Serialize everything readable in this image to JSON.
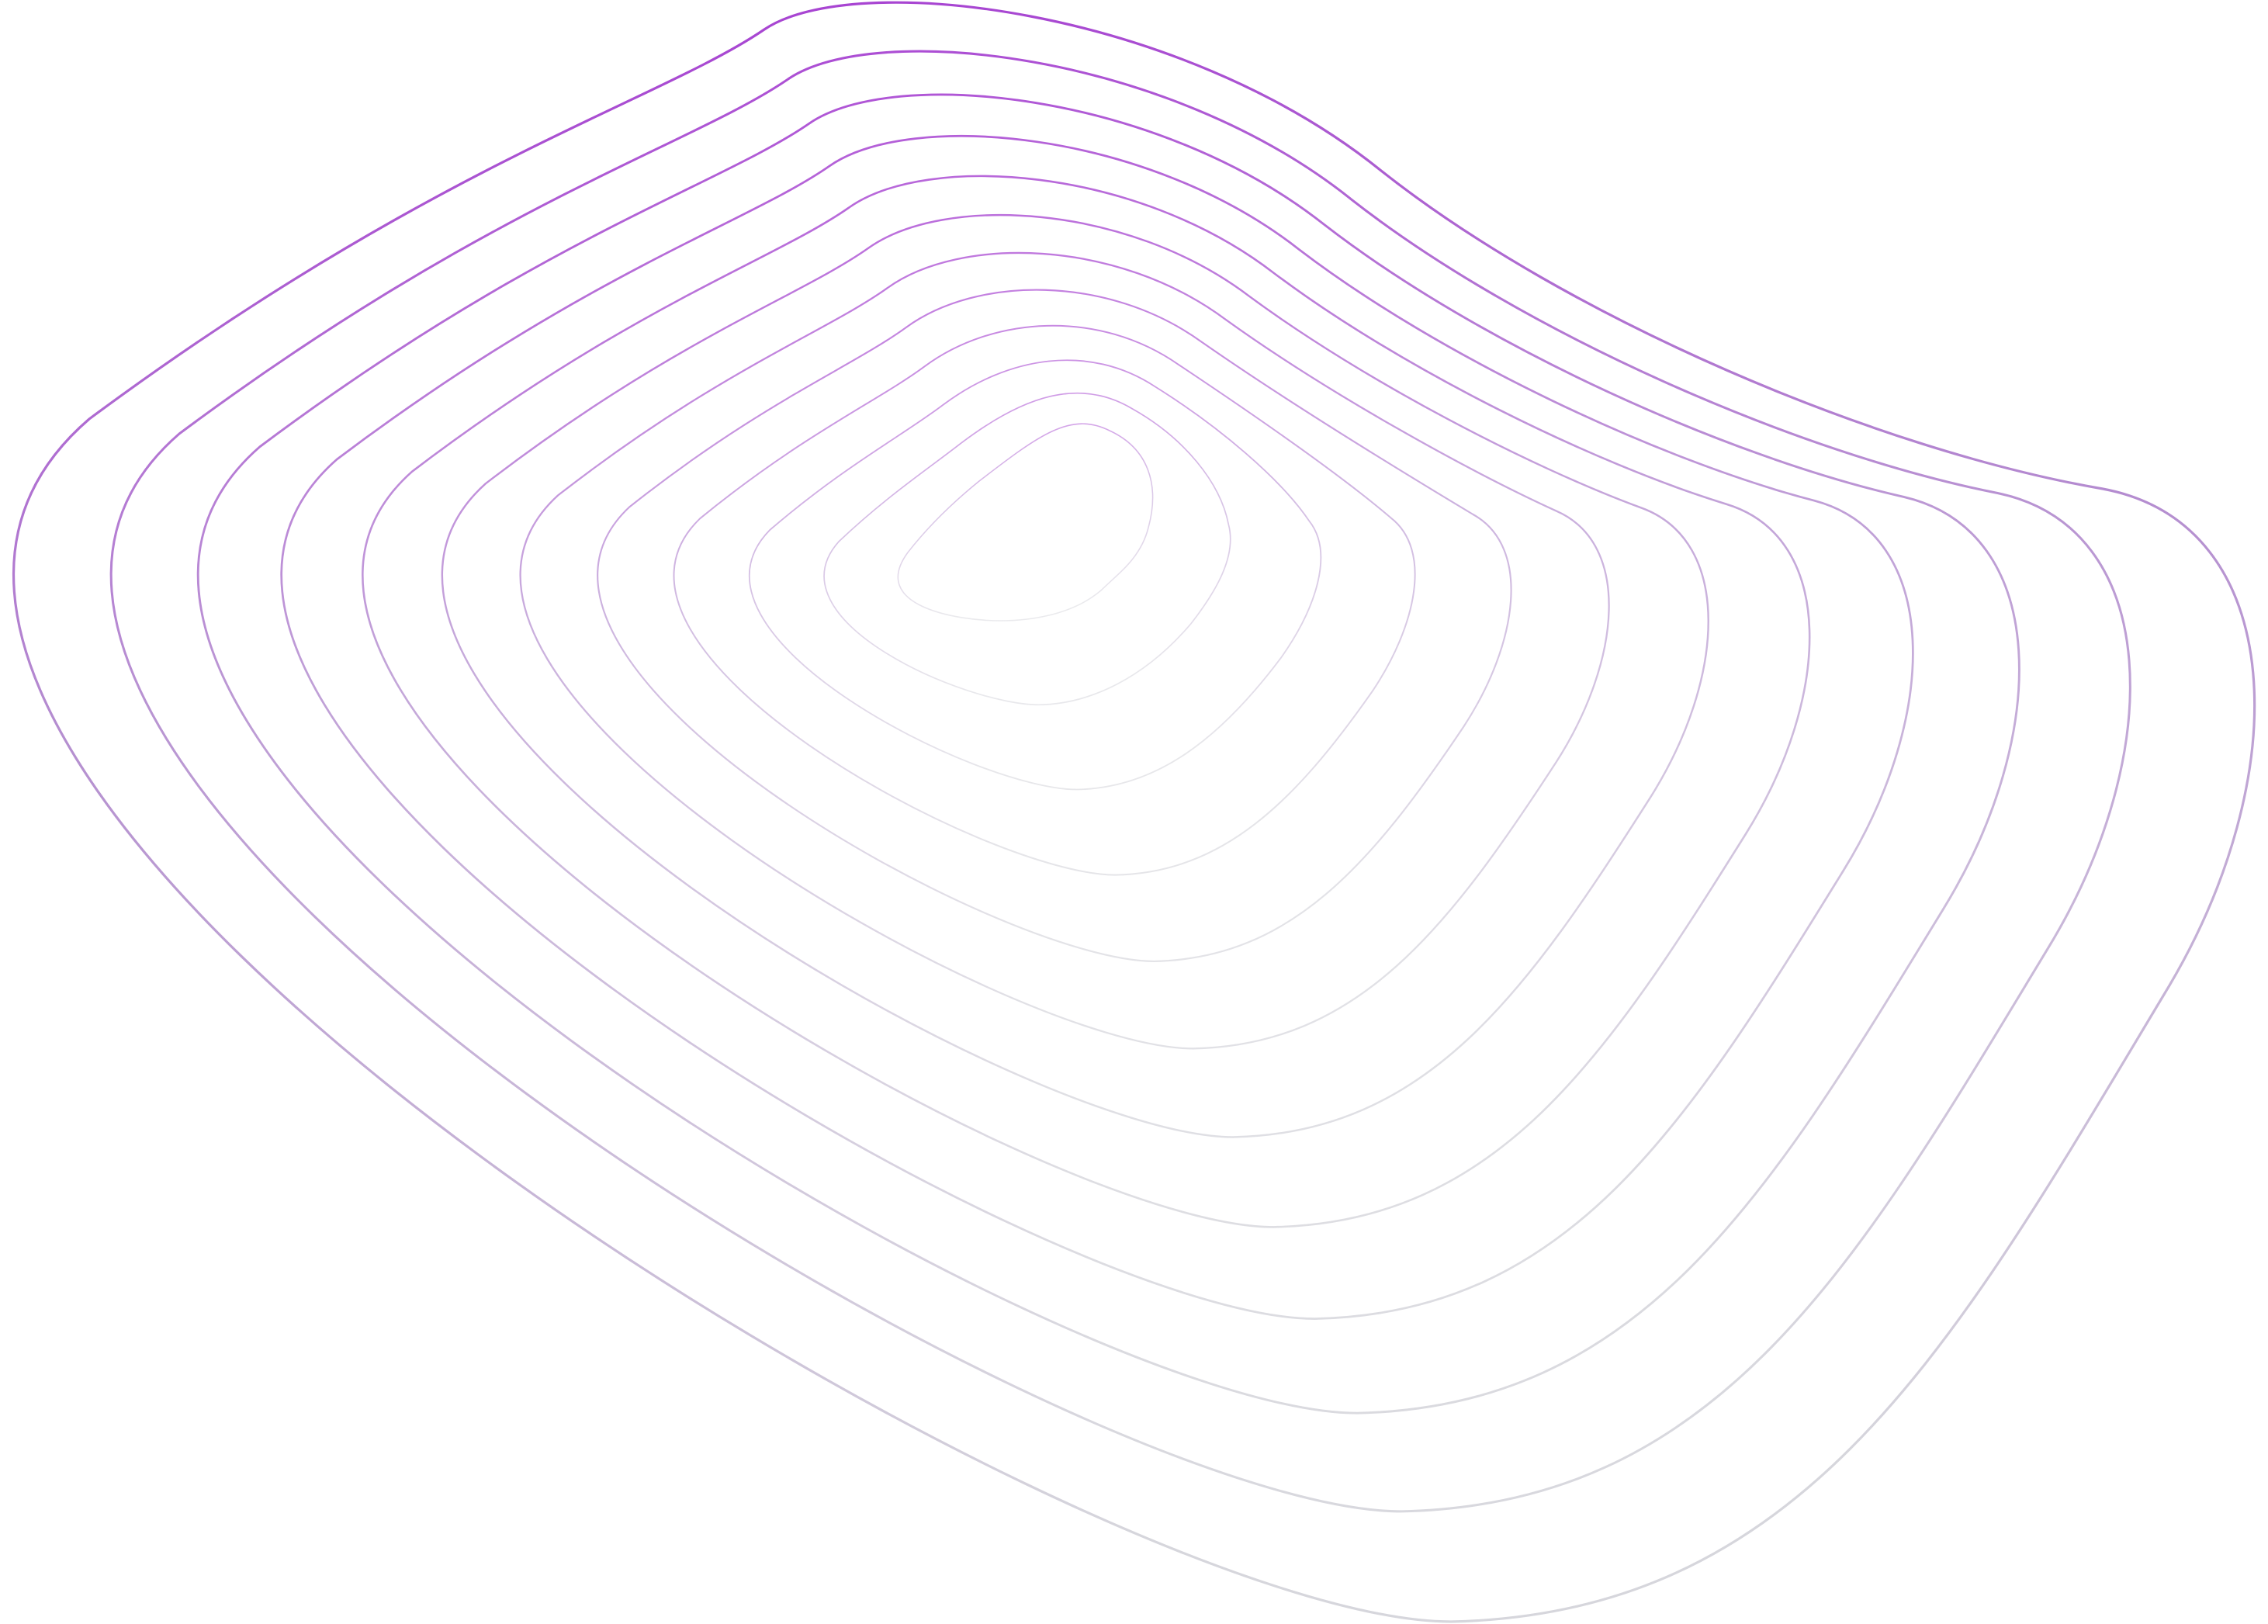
{
  "artwork": {
    "description_type": "nested contour lines",
    "contour_count": 12,
    "colors": {
      "stroke_top": "#a63ad2",
      "stroke_bottom": "#d6d6dc",
      "background": "#ffffff"
    }
  }
}
